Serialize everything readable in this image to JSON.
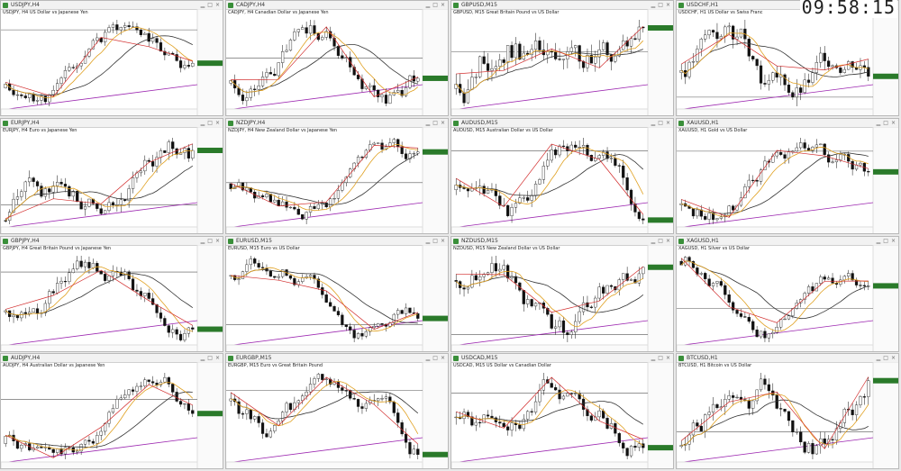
{
  "clock": "09:58:15",
  "colors": {
    "bull": "#2e8ae6",
    "bear": "#d22c2c",
    "ma_slow": "#333333",
    "ma_fast": "#e0a020",
    "level": "#9c27b0",
    "hline": "#555555"
  },
  "panels": [
    {
      "title": "USDJPY,H4",
      "symbol": "USDJPY, H4  US Dollar vs Japanese Yen",
      "seed": 11,
      "trend": 0.8
    },
    {
      "title": "CADJPY,H4",
      "symbol": "CADJPY, H4  Canadian Dollar vs Japanese Yen",
      "seed": 12,
      "trend": 0.1
    },
    {
      "title": "GBPUSD,M15",
      "symbol": "GBPUSD, M15  Great Britain Pound vs US Dollar",
      "seed": 13,
      "trend": -0.2
    },
    {
      "title": "USDCHF,H1",
      "symbol": "USDCHF, H1  US Dollar vs Swiss Franc",
      "seed": 14,
      "trend": -0.3
    },
    {
      "title": "EURJPY,H4",
      "symbol": "EURJPY, H4  Euro vs Japanese Yen",
      "seed": 21,
      "trend": 0.9
    },
    {
      "title": "NZDJPY,H4",
      "symbol": "NZDJPY, H4  New Zealand Dollar vs Japanese Yen",
      "seed": 22,
      "trend": 0.6
    },
    {
      "title": "AUDUSD,M15",
      "symbol": "AUDUSD, M15  Australian Dollar vs US Dollar",
      "seed": 23,
      "trend": -0.4
    },
    {
      "title": "XAUUSD,H1",
      "symbol": "XAUUSD, H1  Gold vs US Dollar",
      "seed": 24,
      "trend": -0.2
    },
    {
      "title": "GBPJPY,H4",
      "symbol": "GBPJPY, H4  Great Britain Pound vs Japanese Yen",
      "seed": 31,
      "trend": 0.5
    },
    {
      "title": "EURUSD,M15",
      "symbol": "EURUSD, M15  Euro vs US Dollar",
      "seed": 32,
      "trend": -0.5
    },
    {
      "title": "NZDUSD,M15",
      "symbol": "NZDUSD, M15  New Zealand Dollar vs US Dollar",
      "seed": 33,
      "trend": -0.6
    },
    {
      "title": "XAGUSD,H1",
      "symbol": "XAGUSD, H1  Silver vs US Dollar",
      "seed": 34,
      "trend": -0.1
    },
    {
      "title": "AUDJPY,H4",
      "symbol": "AUDJPY, H4  Australian Dollar vs Japanese Yen",
      "seed": 41,
      "trend": 0.3
    },
    {
      "title": "EURGBP,M15",
      "symbol": "EURGBP, M15  Euro vs Great Britain Pound",
      "seed": 42,
      "trend": -0.3
    },
    {
      "title": "USDCAD,M15",
      "symbol": "USDCAD, M15  US Dollar vs Canadian Dollar",
      "seed": 43,
      "trend": 0.7
    },
    {
      "title": "BTCUSD,H1",
      "symbol": "BTCUSD, H1  Bitcoin vs US Dollar",
      "seed": 44,
      "trend": 0.8
    }
  ]
}
